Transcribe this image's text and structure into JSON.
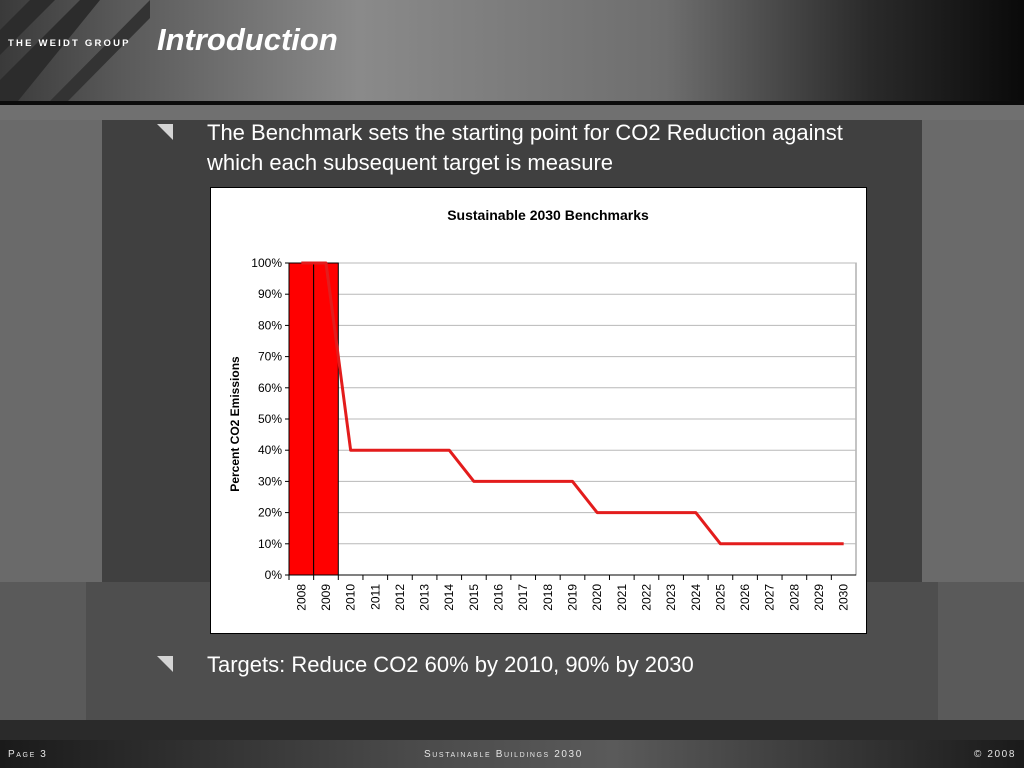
{
  "header": {
    "logo": "THE WEIDT GROUP",
    "title": "Introduction"
  },
  "bullets": [
    {
      "text": "The Benchmark sets the starting point for CO2 Reduction against which each subsequent target is measure"
    },
    {
      "text": "Targets: Reduce CO2 60% by 2010, 90% by 2030"
    }
  ],
  "chart_data": {
    "type": "line",
    "title": "Sustainable 2030 Benchmarks",
    "ylabel": "Percent CO2 Emissions",
    "xlabel": "",
    "ylim": [
      0,
      100
    ],
    "ytick_labels": [
      "0%",
      "10%",
      "20%",
      "30%",
      "40%",
      "50%",
      "60%",
      "70%",
      "80%",
      "90%",
      "100%"
    ],
    "categories": [
      "2008",
      "2009",
      "2010",
      "2011",
      "2012",
      "2013",
      "2014",
      "2015",
      "2016",
      "2017",
      "2018",
      "2019",
      "2020",
      "2021",
      "2022",
      "2023",
      "2024",
      "2025",
      "2026",
      "2027",
      "2028",
      "2029",
      "2030"
    ],
    "series": [
      {
        "type": "bar",
        "color": "#ff0000",
        "values": [
          100,
          100,
          null,
          null,
          null,
          null,
          null,
          null,
          null,
          null,
          null,
          null,
          null,
          null,
          null,
          null,
          null,
          null,
          null,
          null,
          null,
          null,
          null
        ]
      },
      {
        "type": "line",
        "color": "#e31c1c",
        "values": [
          100,
          100,
          40,
          40,
          40,
          40,
          40,
          30,
          30,
          30,
          30,
          30,
          20,
          20,
          20,
          20,
          20,
          10,
          10,
          10,
          10,
          10,
          10
        ]
      }
    ],
    "grid": true
  },
  "footer": {
    "page": "Page 3",
    "center": "Sustainable Buildings 2030",
    "right": "© 2008"
  }
}
